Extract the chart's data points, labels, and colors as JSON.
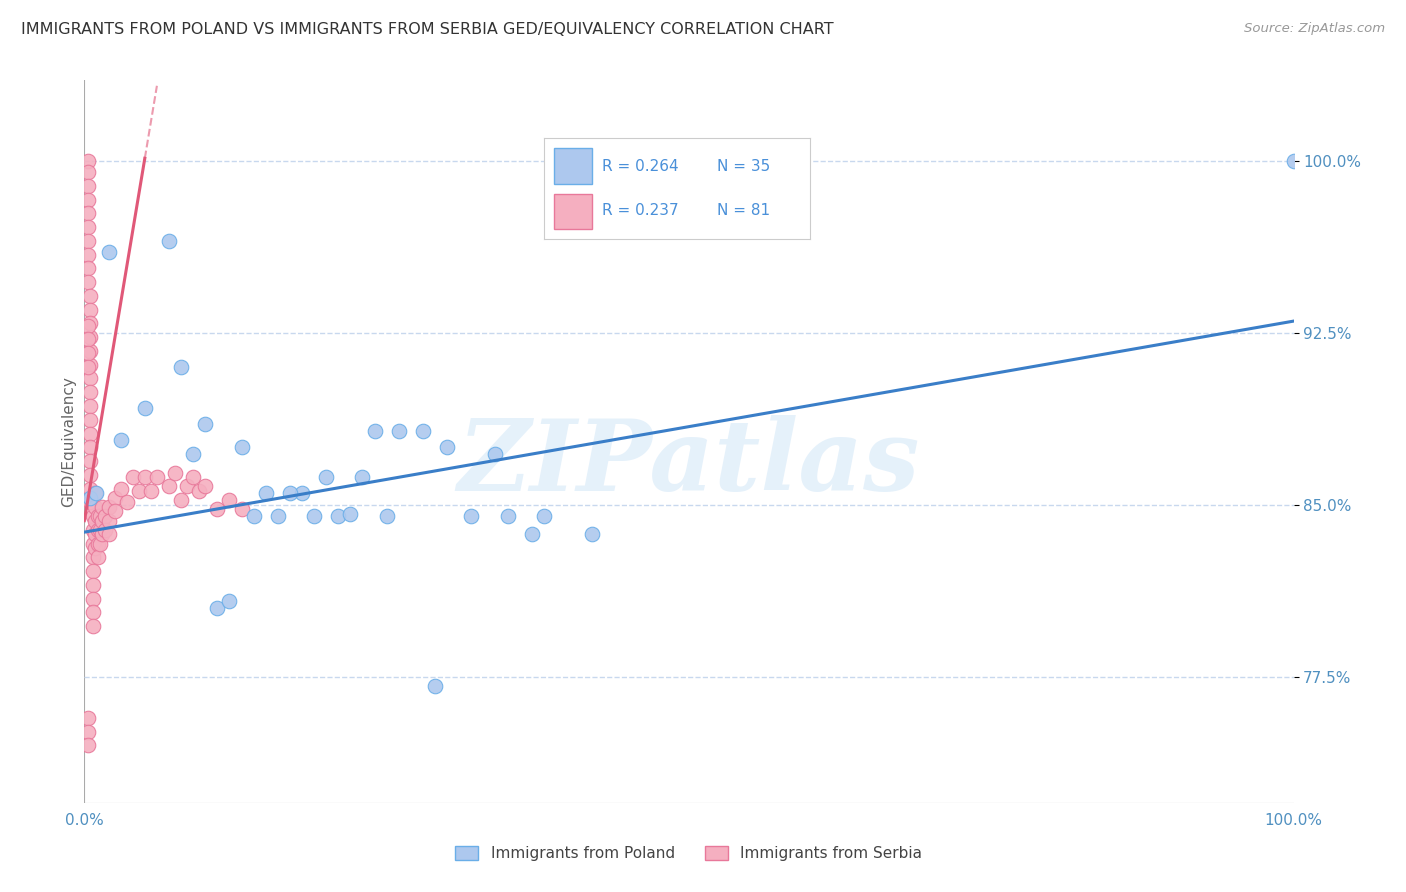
{
  "title": "IMMIGRANTS FROM POLAND VS IMMIGRANTS FROM SERBIA GED/EQUIVALENCY CORRELATION CHART",
  "source": "Source: ZipAtlas.com",
  "ylabel": "GED/Equivalency",
  "xlim": [
    0.0,
    1.0
  ],
  "ylim": [
    0.72,
    1.035
  ],
  "yticks": [
    0.775,
    0.85,
    0.925,
    1.0
  ],
  "ytick_labels": [
    "77.5%",
    "85.0%",
    "92.5%",
    "100.0%"
  ],
  "xticks": [
    0.0,
    0.2,
    0.4,
    0.6,
    0.8,
    1.0
  ],
  "xtick_labels": [
    "0.0%",
    "",
    "",
    "",
    "",
    "100.0%"
  ],
  "poland_R": 0.264,
  "poland_N": 35,
  "serbia_R": 0.237,
  "serbia_N": 81,
  "poland_color": "#adc8ee",
  "serbia_color": "#f5afc0",
  "poland_edge_color": "#6aaee8",
  "serbia_edge_color": "#e8789a",
  "poland_line_color": "#3a7ec8",
  "serbia_line_color": "#e05878",
  "legend_text_color": "#4a90d9",
  "axis_label_color": "#5090c0",
  "grid_color": "#c8d8ee",
  "background_color": "#ffffff",
  "title_color": "#333333",
  "watermark": "ZIPatlas",
  "poland_scatter_x": [
    0.005,
    0.01,
    0.02,
    0.07,
    0.08,
    0.1,
    0.11,
    0.13,
    0.14,
    0.16,
    0.18,
    0.19,
    0.2,
    0.21,
    0.22,
    0.23,
    0.25,
    0.26,
    0.28,
    0.3,
    0.32,
    0.34,
    0.37,
    0.38,
    0.42,
    0.03,
    0.05,
    0.09,
    0.12,
    0.15,
    0.17,
    0.24,
    0.29,
    0.35,
    1.0
  ],
  "poland_scatter_y": [
    0.853,
    0.855,
    0.96,
    0.965,
    0.91,
    0.885,
    0.805,
    0.875,
    0.845,
    0.845,
    0.855,
    0.845,
    0.862,
    0.845,
    0.846,
    0.862,
    0.845,
    0.882,
    0.882,
    0.875,
    0.845,
    0.872,
    0.837,
    0.845,
    0.837,
    0.878,
    0.892,
    0.872,
    0.808,
    0.855,
    0.855,
    0.882,
    0.771,
    0.845,
    1.0
  ],
  "serbia_scatter_x": [
    0.003,
    0.003,
    0.003,
    0.003,
    0.003,
    0.003,
    0.003,
    0.003,
    0.003,
    0.003,
    0.005,
    0.005,
    0.005,
    0.005,
    0.005,
    0.005,
    0.005,
    0.005,
    0.005,
    0.005,
    0.005,
    0.005,
    0.005,
    0.005,
    0.005,
    0.005,
    0.007,
    0.007,
    0.007,
    0.007,
    0.007,
    0.007,
    0.007,
    0.007,
    0.007,
    0.009,
    0.009,
    0.009,
    0.009,
    0.009,
    0.011,
    0.011,
    0.011,
    0.011,
    0.013,
    0.013,
    0.013,
    0.015,
    0.015,
    0.015,
    0.017,
    0.017,
    0.02,
    0.02,
    0.02,
    0.025,
    0.025,
    0.03,
    0.035,
    0.04,
    0.045,
    0.05,
    0.055,
    0.06,
    0.07,
    0.075,
    0.08,
    0.085,
    0.09,
    0.095,
    0.1,
    0.11,
    0.12,
    0.13,
    0.003,
    0.003,
    0.003,
    0.003,
    0.003,
    0.003,
    0.003
  ],
  "serbia_scatter_y": [
    1.0,
    0.995,
    0.989,
    0.983,
    0.977,
    0.971,
    0.965,
    0.959,
    0.953,
    0.947,
    0.941,
    0.935,
    0.929,
    0.923,
    0.917,
    0.911,
    0.905,
    0.899,
    0.893,
    0.887,
    0.881,
    0.875,
    0.869,
    0.863,
    0.857,
    0.851,
    0.845,
    0.839,
    0.833,
    0.827,
    0.821,
    0.815,
    0.809,
    0.803,
    0.797,
    0.855,
    0.849,
    0.843,
    0.837,
    0.831,
    0.845,
    0.839,
    0.833,
    0.827,
    0.845,
    0.839,
    0.833,
    0.849,
    0.843,
    0.837,
    0.845,
    0.839,
    0.849,
    0.843,
    0.837,
    0.853,
    0.847,
    0.857,
    0.851,
    0.862,
    0.856,
    0.862,
    0.856,
    0.862,
    0.858,
    0.864,
    0.852,
    0.858,
    0.862,
    0.856,
    0.858,
    0.848,
    0.852,
    0.848,
    0.757,
    0.751,
    0.745,
    0.928,
    0.922,
    0.916,
    0.91
  ],
  "poland_line_x0": 0.0,
  "poland_line_y0": 0.838,
  "poland_line_x1": 1.0,
  "poland_line_y1": 0.93,
  "serbia_line_x0": 0.0,
  "serbia_line_y0": 0.843,
  "serbia_line_x1": 0.05,
  "serbia_line_y1": 1.001
}
